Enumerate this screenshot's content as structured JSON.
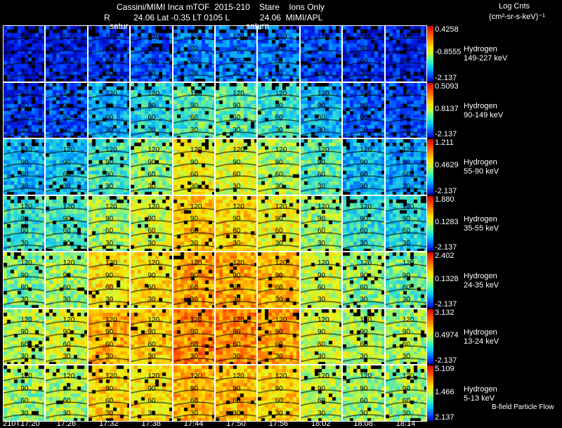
{
  "header": {
    "line1": "Cassini/MIMI Inca mTOF  2015-210    Stare    Ions Only",
    "line2": "R          24.06 Lat -0.35 LT 0105 L             24.06  MIMI/APL",
    "saturn_left": "satur",
    "saturn_right": "saturn",
    "units_line1": "Log Cnts",
    "units_line2": "(cm²-sr-s-keV)⁻¹"
  },
  "footer": {
    "bfield_label": "B-field Particle Flow"
  },
  "chart_data": {
    "type": "heatmap",
    "x_ticks": [
      "210T17:20",
      "17:26",
      "17:32",
      "17:38",
      "17:44",
      "17:50",
      "17:56",
      "18:02",
      "18:08",
      "18:14"
    ],
    "row_tick_labels": [
      "120",
      "90",
      "60",
      "30"
    ],
    "rows": [
      {
        "species": "Hydrogen",
        "energy": "149-227 keV",
        "cb_top": "0.4258",
        "cb_mid": "-0.8555",
        "cb_bottom": "-2.137",
        "levels": [
          0.1,
          0.12,
          0.16,
          0.2,
          0.26,
          0.26,
          0.24,
          0.18,
          0.14,
          0.12
        ]
      },
      {
        "species": "Hydrogen",
        "energy": "90-149 keV",
        "cb_top": "0.5093",
        "cb_mid": "0.8137",
        "cb_bottom": "-2.137",
        "levels": [
          0.16,
          0.2,
          0.32,
          0.4,
          0.48,
          0.48,
          0.44,
          0.34,
          0.22,
          0.18
        ]
      },
      {
        "species": "Hydrogen",
        "energy": "55-90 keV",
        "cb_top": "1.211",
        "cb_mid": "0.4629",
        "cb_bottom": "-2.137",
        "levels": [
          0.34,
          0.36,
          0.46,
          0.54,
          0.66,
          0.64,
          0.58,
          0.48,
          0.34,
          0.3
        ]
      },
      {
        "species": "Hydrogen",
        "energy": "35-55 keV",
        "cb_top": "1.880",
        "cb_mid": "0.1283",
        "cb_bottom": "-2.137",
        "levels": [
          0.44,
          0.46,
          0.56,
          0.62,
          0.74,
          0.72,
          0.66,
          0.56,
          0.44,
          0.4
        ]
      },
      {
        "species": "Hydrogen",
        "energy": "24-35 keV",
        "cb_top": "2.402",
        "cb_mid": "0.1328",
        "cb_bottom": "-2.137",
        "levels": [
          0.52,
          0.56,
          0.7,
          0.7,
          0.8,
          0.8,
          0.76,
          0.62,
          0.54,
          0.5
        ]
      },
      {
        "species": "Hydrogen",
        "energy": "13-24 keV",
        "cb_top": "3.132",
        "cb_mid": "0.4974",
        "cb_bottom": "-2.137",
        "levels": [
          0.58,
          0.62,
          0.78,
          0.74,
          0.84,
          0.84,
          0.8,
          0.62,
          0.58,
          0.56
        ]
      },
      {
        "species": "Hydrogen",
        "energy": "5-13 keV",
        "cb_top": "5.109",
        "cb_mid": "1.466",
        "cb_bottom": "2.137",
        "levels": [
          0.56,
          0.58,
          0.72,
          0.7,
          0.78,
          0.76,
          0.72,
          0.6,
          0.56,
          0.56
        ]
      }
    ]
  }
}
